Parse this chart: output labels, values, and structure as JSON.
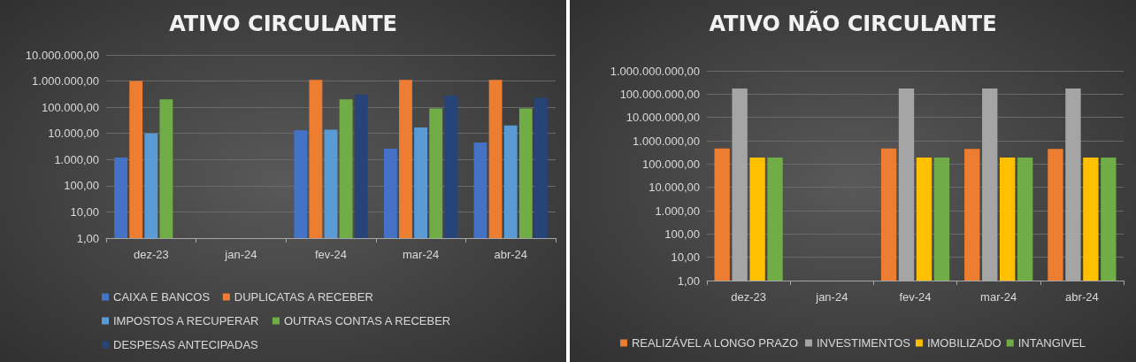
{
  "chart_data": [
    {
      "type": "bar",
      "title": "ATIVO CIRCULANTE",
      "categories": [
        "dez-23",
        "jan-24",
        "fev-24",
        "mar-24",
        "abr-24"
      ],
      "series": [
        {
          "name": "CAIXA E BANCOS",
          "color": "#4472c4",
          "values": [
            1200,
            null,
            13000,
            2600,
            4500
          ]
        },
        {
          "name": "DUPLICATAS A RECEBER",
          "color": "#ed7d31",
          "values": [
            1000000,
            null,
            1100000,
            1100000,
            1100000
          ]
        },
        {
          "name": "IMPOSTOS A RECUPERAR",
          "color": "#5b9bd5",
          "values": [
            10000,
            null,
            14000,
            17000,
            20000
          ]
        },
        {
          "name": "OUTRAS CONTAS A RECEBER",
          "color": "#70ad47",
          "values": [
            200000,
            null,
            200000,
            90000,
            90000
          ]
        },
        {
          "name": "DESPESAS ANTECIPADAS",
          "color": "#264478",
          "values": [
            null,
            null,
            300000,
            280000,
            230000
          ]
        }
      ],
      "log": "y",
      "ylim": [
        1,
        10000000
      ],
      "yticks": [
        {
          "value": 1,
          "label": "1,00"
        },
        {
          "value": 10,
          "label": "10,00"
        },
        {
          "value": 100,
          "label": "100,00"
        },
        {
          "value": 1000,
          "label": "1.000,00"
        },
        {
          "value": 10000,
          "label": "10.000,00"
        },
        {
          "value": 100000,
          "label": "100.000,00"
        },
        {
          "value": 1000000,
          "label": "1.000.000,00"
        },
        {
          "value": 10000000,
          "label": "10.000.000,00"
        }
      ],
      "grid": "y",
      "legend": "bottom"
    },
    {
      "type": "bar",
      "title": "ATIVO NÃO CIRCULANTE",
      "categories": [
        "dez-23",
        "jan-24",
        "fev-24",
        "mar-24",
        "abr-24"
      ],
      "series": [
        {
          "name": "REALIZÁVEL A LONGO PRAZO",
          "color": "#ed7d31",
          "values": [
            470000,
            null,
            470000,
            450000,
            450000
          ]
        },
        {
          "name": "INVESTIMENTOS",
          "color": "#a5a5a5",
          "values": [
            175000000,
            null,
            175000000,
            175000000,
            175000000
          ]
        },
        {
          "name": "IMOBILIZADO",
          "color": "#ffc000",
          "values": [
            190000,
            null,
            190000,
            190000,
            190000
          ]
        },
        {
          "name": "INTANGIVEL",
          "color": "#70ad47",
          "values": [
            190000,
            null,
            190000,
            190000,
            190000
          ]
        }
      ],
      "log": "y",
      "ylim": [
        1,
        1000000000
      ],
      "yticks": [
        {
          "value": 1,
          "label": "1,00"
        },
        {
          "value": 10,
          "label": "10,00"
        },
        {
          "value": 100,
          "label": "100,00"
        },
        {
          "value": 1000,
          "label": "1.000,00"
        },
        {
          "value": 10000,
          "label": "10.000,00"
        },
        {
          "value": 100000,
          "label": "100.000,00"
        },
        {
          "value": 1000000,
          "label": "1.000.000,00"
        },
        {
          "value": 10000000,
          "label": "10.000.000,00"
        },
        {
          "value": 100000000,
          "label": "100.000.000,00"
        },
        {
          "value": 1000000000,
          "label": "1.000.000.000,00"
        }
      ],
      "grid": "y",
      "legend": "bottom"
    }
  ]
}
